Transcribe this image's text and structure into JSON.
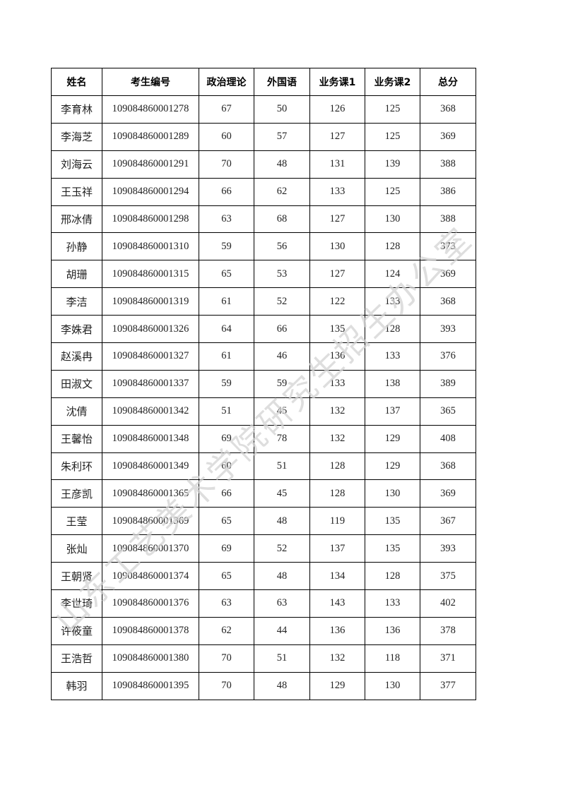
{
  "headers": [
    "姓名",
    "考生编号",
    "政治理论",
    "外国语",
    "业务课1",
    "业务课2",
    "总分"
  ],
  "rows": [
    [
      "李育林",
      "109084860001278",
      "67",
      "50",
      "126",
      "125",
      "368"
    ],
    [
      "李海芝",
      "109084860001289",
      "60",
      "57",
      "127",
      "125",
      "369"
    ],
    [
      "刘海云",
      "109084860001291",
      "70",
      "48",
      "131",
      "139",
      "388"
    ],
    [
      "王玉祥",
      "109084860001294",
      "66",
      "62",
      "133",
      "125",
      "386"
    ],
    [
      "邢冰倩",
      "109084860001298",
      "63",
      "68",
      "127",
      "130",
      "388"
    ],
    [
      "孙静",
      "109084860001310",
      "59",
      "56",
      "130",
      "128",
      "373"
    ],
    [
      "胡珊",
      "109084860001315",
      "65",
      "53",
      "127",
      "124",
      "369"
    ],
    [
      "李洁",
      "109084860001319",
      "61",
      "52",
      "122",
      "133",
      "368"
    ],
    [
      "李姝君",
      "109084860001326",
      "64",
      "66",
      "135",
      "128",
      "393"
    ],
    [
      "赵溪冉",
      "109084860001327",
      "61",
      "46",
      "136",
      "133",
      "376"
    ],
    [
      "田淑文",
      "109084860001337",
      "59",
      "59",
      "133",
      "138",
      "389"
    ],
    [
      "沈倩",
      "109084860001342",
      "51",
      "45",
      "132",
      "137",
      "365"
    ],
    [
      "王馨怡",
      "109084860001348",
      "69",
      "78",
      "132",
      "129",
      "408"
    ],
    [
      "朱利环",
      "109084860001349",
      "60",
      "51",
      "128",
      "129",
      "368"
    ],
    [
      "王彦凯",
      "109084860001365",
      "66",
      "45",
      "128",
      "130",
      "369"
    ],
    [
      "王莹",
      "109084860001369",
      "65",
      "48",
      "119",
      "135",
      "367"
    ],
    [
      "张灿",
      "109084860001370",
      "69",
      "52",
      "137",
      "135",
      "393"
    ],
    [
      "王朝贤",
      "109084860001374",
      "65",
      "48",
      "134",
      "128",
      "375"
    ],
    [
      "李世琦",
      "109084860001376",
      "63",
      "63",
      "143",
      "133",
      "402"
    ],
    [
      "许筱童",
      "109084860001378",
      "62",
      "44",
      "136",
      "136",
      "378"
    ],
    [
      "王浩哲",
      "109084860001380",
      "70",
      "51",
      "132",
      "118",
      "371"
    ],
    [
      "韩羽",
      "109084860001395",
      "70",
      "48",
      "129",
      "130",
      "377"
    ]
  ],
  "watermark": "山东工艺美术学院研究生招生办公室"
}
